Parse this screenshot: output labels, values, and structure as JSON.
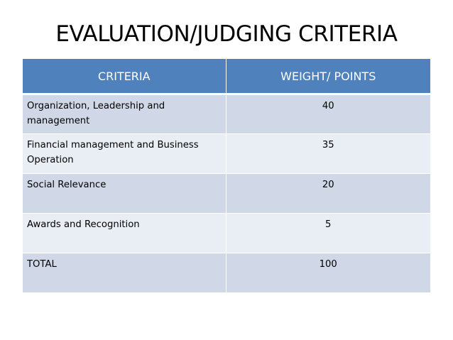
{
  "slide": {
    "title": "EVALUATION/JUDGING CRITERIA"
  },
  "table": {
    "headers": [
      "CRITERIA",
      "WEIGHT/ POINTS"
    ],
    "rows": [
      {
        "criteria": "Organization, Leadership and management",
        "points": "40"
      },
      {
        "criteria": "Financial management and Business Operation",
        "points": "35"
      },
      {
        "criteria": "Social Relevance",
        "points": "20"
      },
      {
        "criteria": "Awards and Recognition",
        "points": "5"
      },
      {
        "criteria": "TOTAL",
        "points": "100"
      }
    ]
  },
  "colors": {
    "header_bg": "#4f81bd",
    "row_odd_bg": "#d0d8e8",
    "row_even_bg": "#e9edf4"
  }
}
